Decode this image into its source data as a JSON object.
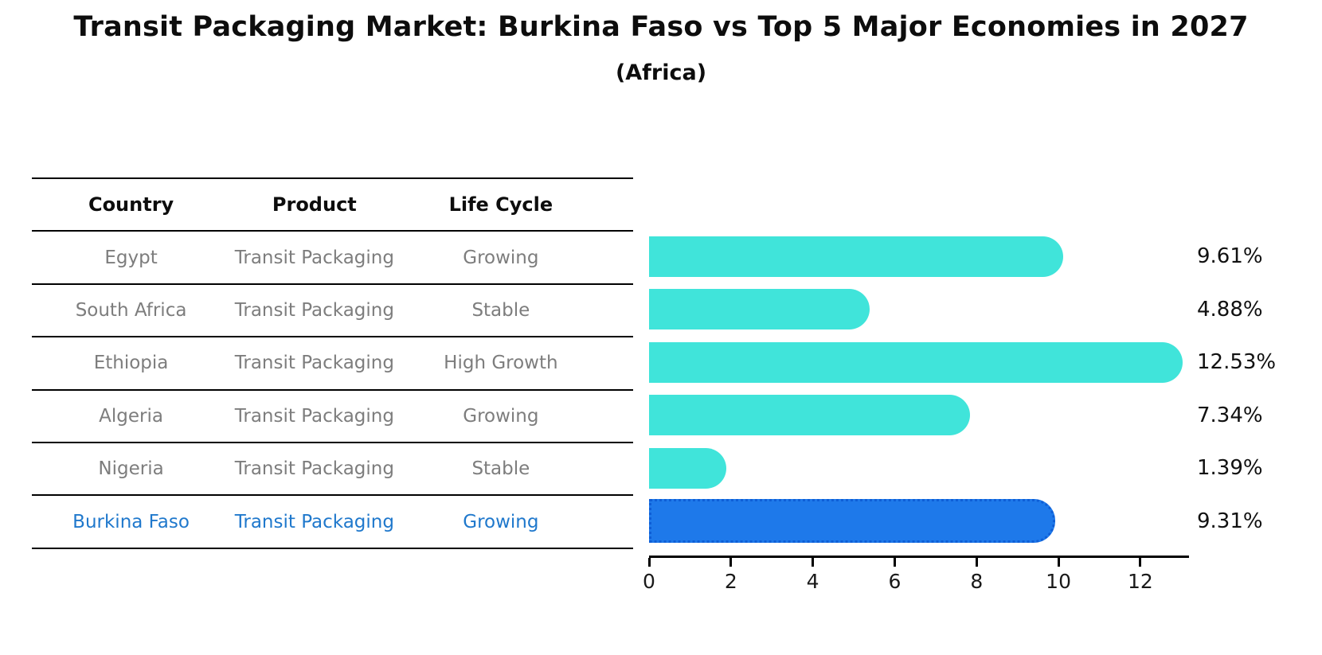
{
  "title": "Transit Packaging Market: Burkina Faso vs Top 5 Major Economies in 2027",
  "subtitle": "(Africa)",
  "table": {
    "headers": [
      "Country",
      "Product",
      "Life Cycle"
    ],
    "rows": [
      {
        "country": "Egypt",
        "product": "Transit Packaging",
        "life_cycle": "Growing",
        "highlight": false
      },
      {
        "country": "South Africa",
        "product": "Transit Packaging",
        "life_cycle": "Stable",
        "highlight": false
      },
      {
        "country": "Ethiopia",
        "product": "Transit Packaging",
        "life_cycle": "High Growth",
        "highlight": false
      },
      {
        "country": "Algeria",
        "product": "Transit Packaging",
        "life_cycle": "Growing",
        "highlight": false
      },
      {
        "country": "Nigeria",
        "product": "Transit Packaging",
        "life_cycle": "Stable",
        "highlight": false
      },
      {
        "country": "Burkina Faso",
        "product": "Transit Packaging",
        "life_cycle": "Growing",
        "highlight": true
      }
    ]
  },
  "chart_data": {
    "type": "bar",
    "orientation": "horizontal",
    "title": "Transit Packaging Market: Burkina Faso vs Top 5 Major Economies in 2027 (Africa)",
    "categories": [
      "Egypt",
      "South Africa",
      "Ethiopia",
      "Algeria",
      "Nigeria",
      "Burkina Faso"
    ],
    "values": [
      9.61,
      4.88,
      12.53,
      7.34,
      1.39,
      9.31
    ],
    "value_labels": [
      "9.61%",
      "4.88%",
      "12.53%",
      "7.34%",
      "1.39%",
      "9.31%"
    ],
    "xlabel": "",
    "ylabel": "",
    "xticks": [
      0,
      2,
      4,
      6,
      8,
      10,
      12
    ],
    "xlim": [
      0,
      13.13
    ],
    "grid": false,
    "legend": false,
    "bar_color": "#40e4da",
    "highlight_index": 5,
    "highlight_color": "#1e79ea",
    "highlight_edge": "dotted",
    "bar_end_padding_units": 0.5
  },
  "colors": {
    "background": "#ffffff",
    "table_line": "#000000",
    "table_text": "#7d7d7d",
    "table_header_text": "#0d0d0d",
    "highlight_text": "#1f78cc",
    "axis": "#000000",
    "value_label": "#111111"
  }
}
